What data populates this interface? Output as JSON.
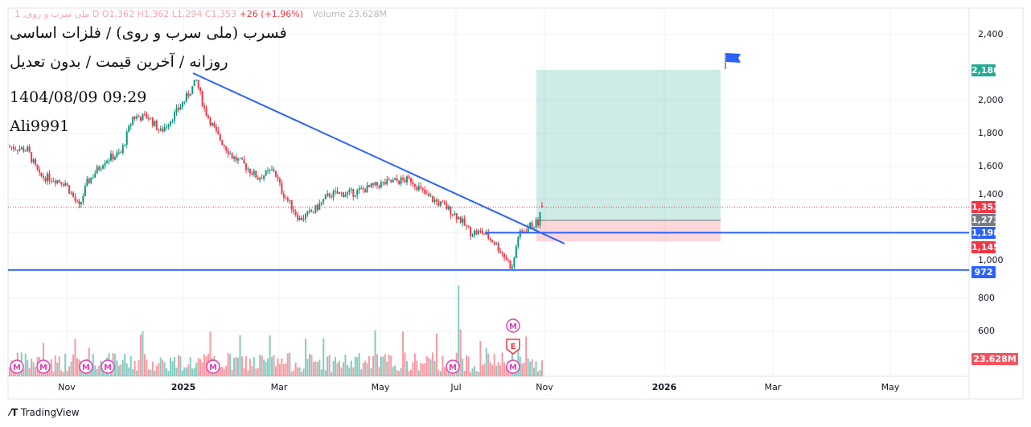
{
  "legend": {
    "symbol": "ملی سرب و روی, 1",
    "interval": "D",
    "open": "O1,362",
    "high": "H1,362",
    "low": "L1,294",
    "close": "C1,353",
    "change": "+26 (+1.96%)",
    "volume": "Volume 23.628M"
  },
  "annotations": [
    "فسرب (ملی سرب و روی) / فلزات اساسی",
    "روزانه / آخرین قیمت / بدون تعدیل",
    "1404/08/09 09:29",
    "Ali9991"
  ],
  "price_tags": [
    {
      "label": "2,186",
      "value": 2186,
      "color": "#22ab94"
    },
    {
      "label": "1,353",
      "value": 1353,
      "color": "#f23645"
    },
    {
      "label": "1,273",
      "value": 1273,
      "color": "#787b86"
    },
    {
      "label": "1,198",
      "value": 1198,
      "color": "#2962ff"
    },
    {
      "label": "1,145",
      "value": 1145,
      "color": "#f23645"
    },
    {
      "label": "972",
      "value": 972,
      "color": "#2962ff"
    }
  ],
  "volume_tag": {
    "label": "23.628M",
    "color": "#f7525f"
  },
  "branding": "TradingView",
  "chart_data": {
    "type": "candlestick",
    "price_axis": {
      "ticks": [
        2400,
        2000,
        1800,
        1600,
        1400,
        1000,
        800,
        600
      ],
      "labels": [
        "2,400",
        "2,000",
        "1,800",
        "1,600",
        "1,400",
        "1,000",
        "800",
        "600"
      ]
    },
    "time_axis": {
      "labels": [
        "Nov",
        "2025",
        "Mar",
        "May",
        "Jul",
        "Nov",
        "2026",
        "Mar",
        "May"
      ]
    },
    "close_path": [
      [
        0,
        1720
      ],
      [
        9,
        1700
      ],
      [
        15,
        1540
      ],
      [
        21,
        1530
      ],
      [
        28,
        1500
      ],
      [
        35,
        1350
      ],
      [
        39,
        1500
      ],
      [
        48,
        1640
      ],
      [
        56,
        1680
      ],
      [
        62,
        1900
      ],
      [
        70,
        1900
      ],
      [
        76,
        1810
      ],
      [
        82,
        1900
      ],
      [
        88,
        2000
      ],
      [
        94,
        2120
      ],
      [
        98,
        1950
      ],
      [
        104,
        1800
      ],
      [
        112,
        1660
      ],
      [
        118,
        1610
      ],
      [
        125,
        1530
      ],
      [
        133,
        1580
      ],
      [
        137,
        1450
      ],
      [
        146,
        1280
      ],
      [
        153,
        1330
      ],
      [
        161,
        1430
      ],
      [
        173,
        1440
      ],
      [
        186,
        1490
      ],
      [
        194,
        1510
      ],
      [
        202,
        1520
      ],
      [
        210,
        1420
      ],
      [
        220,
        1350
      ],
      [
        226,
        1290
      ],
      [
        232,
        1200
      ],
      [
        238,
        1200
      ],
      [
        244,
        1140
      ],
      [
        250,
        1040
      ],
      [
        253,
        980
      ],
      [
        256,
        1180
      ],
      [
        262,
        1240
      ],
      [
        266,
        1260
      ],
      [
        268,
        1353
      ]
    ],
    "last": {
      "open": 1362,
      "high": 1362,
      "low": 1294,
      "close": 1353,
      "volume": "23.628M"
    },
    "horizontal_levels": [
      1198,
      972
    ],
    "long_position": {
      "entry": 1273,
      "target": 2186,
      "stop": 1145
    },
    "markers": [
      "M",
      "M",
      "M",
      "M",
      "M",
      "M",
      "M",
      "E"
    ]
  }
}
